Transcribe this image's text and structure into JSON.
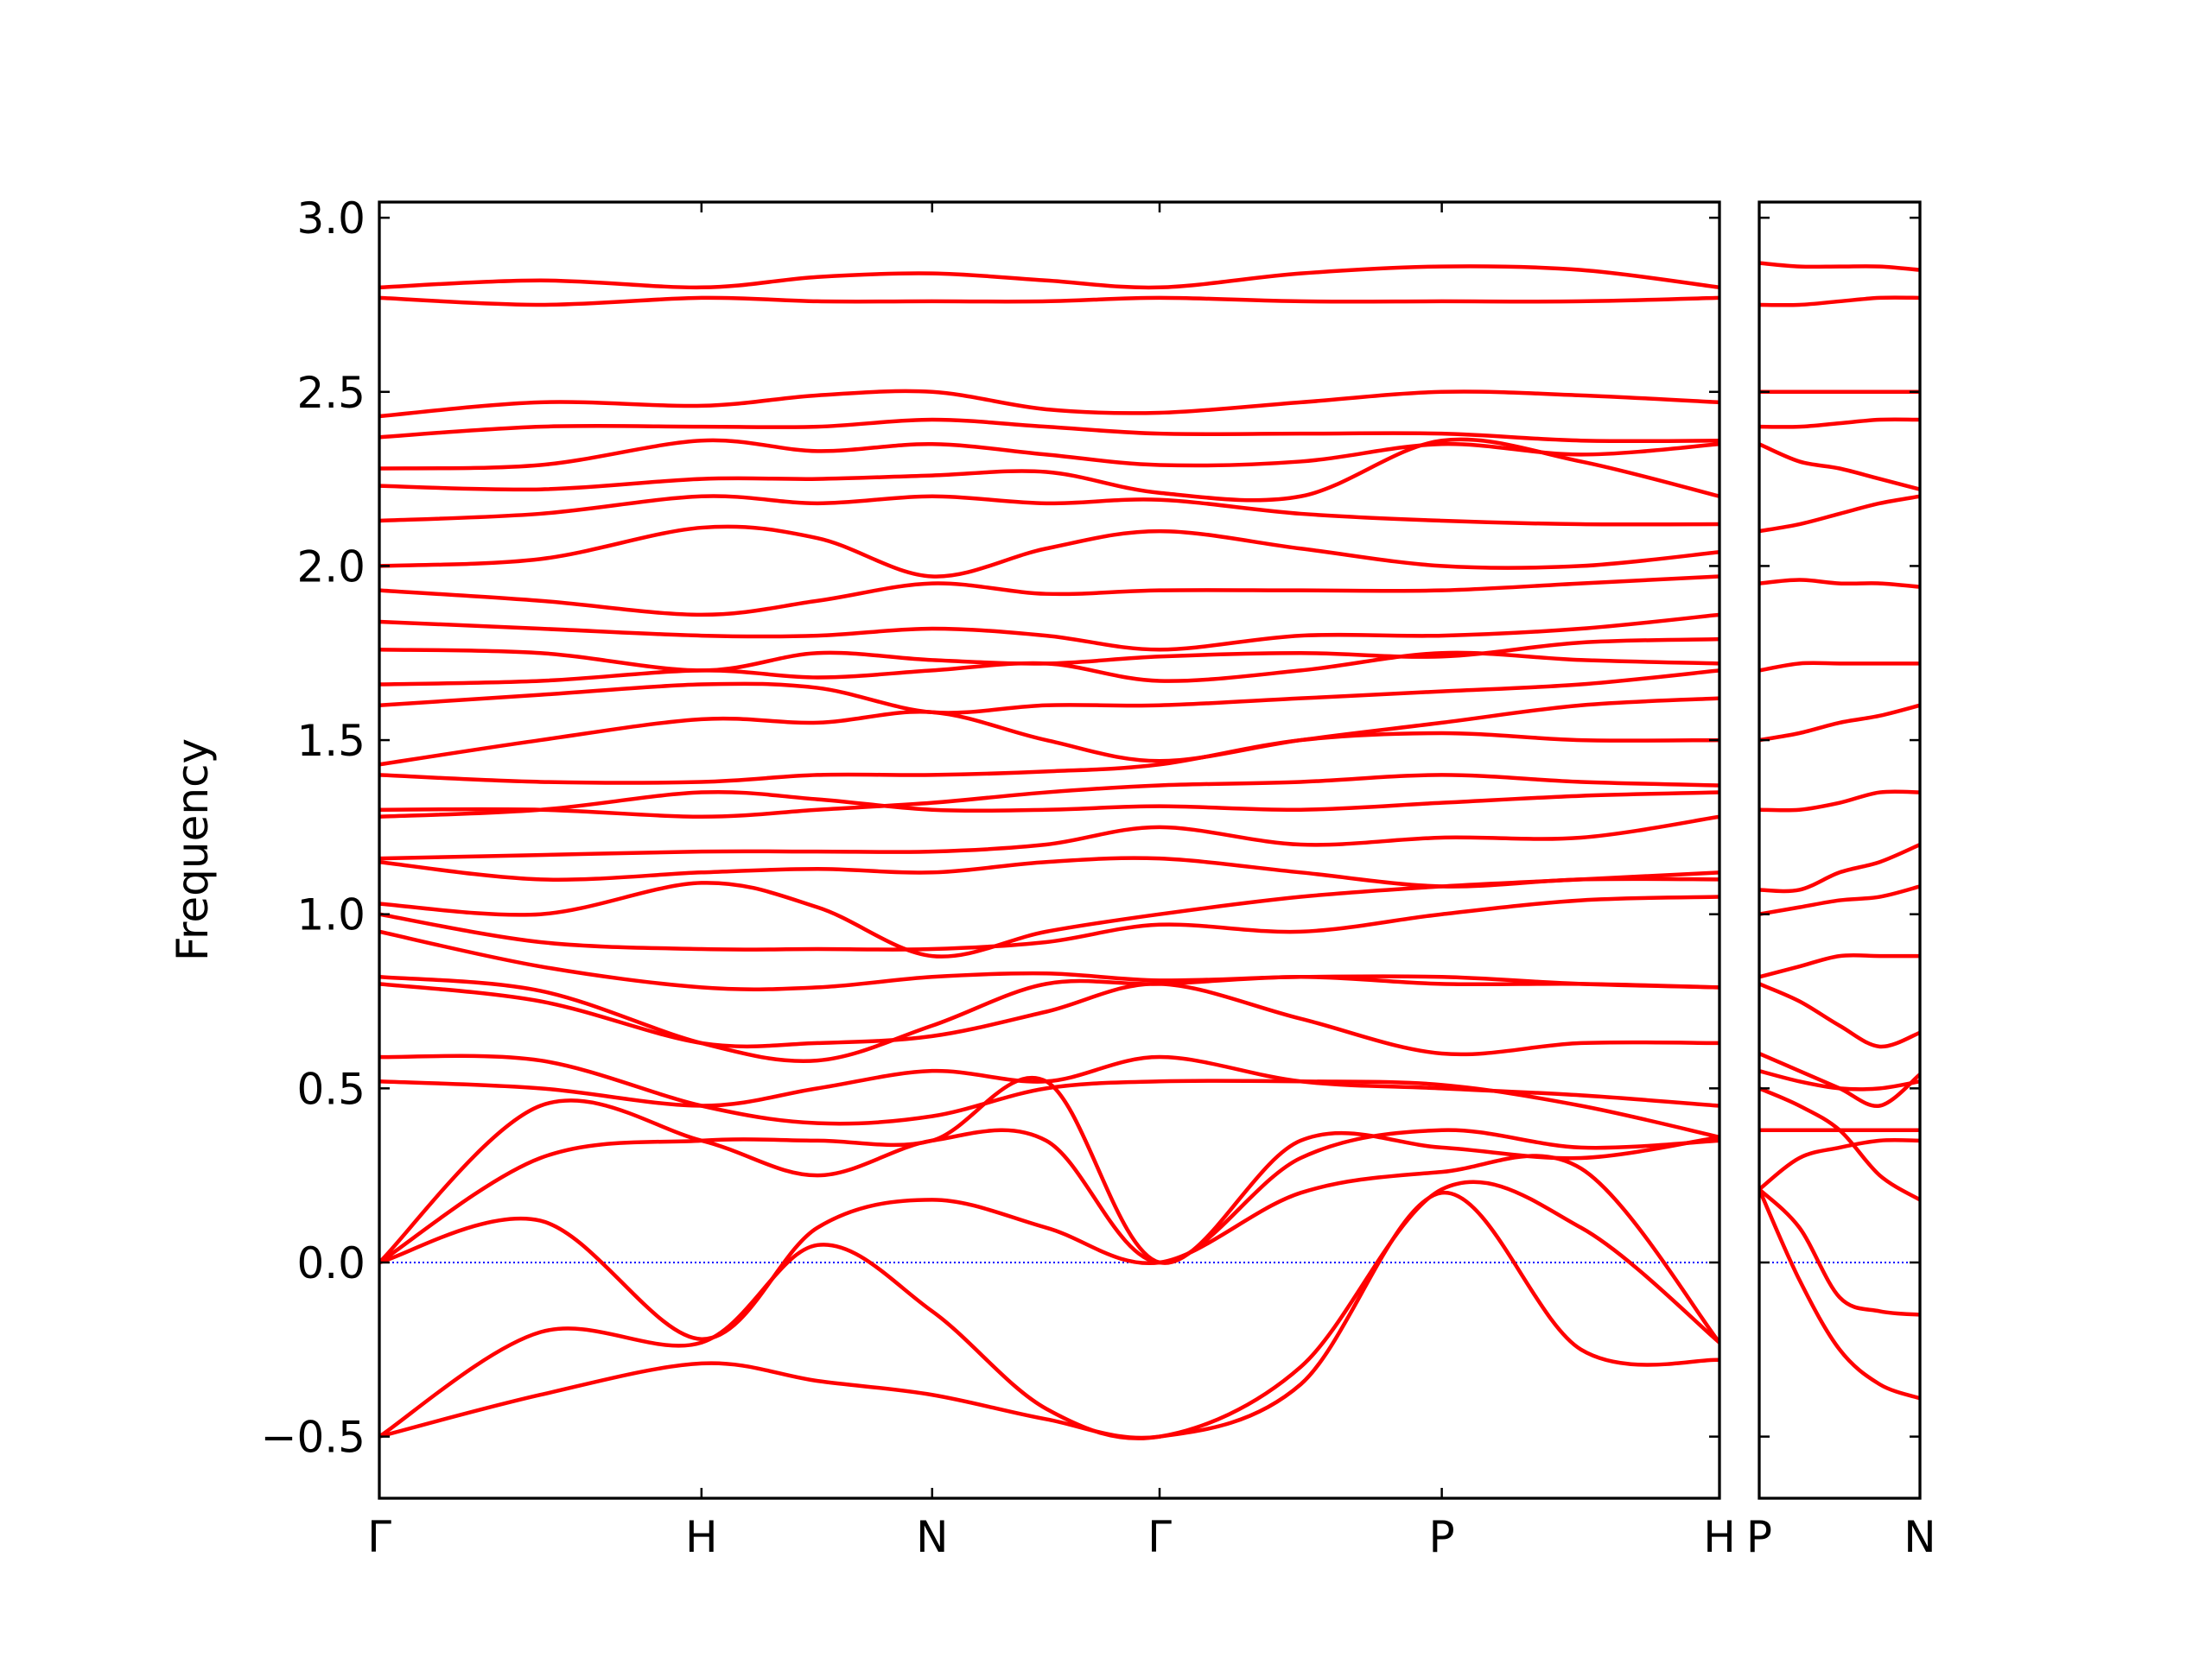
{
  "chart_data": [
    {
      "type": "line",
      "ylabel": "Frequency",
      "color": "#ff0000",
      "xlim": [
        0,
        4.16
      ],
      "ylim": [
        -0.677,
        3.045
      ],
      "xticks": [
        {
          "value": 0,
          "label": "Γ"
        },
        {
          "value": 1.0,
          "label": "H"
        },
        {
          "value": 1.716,
          "label": "N"
        },
        {
          "value": 2.422,
          "label": "Γ"
        },
        {
          "value": 3.298,
          "label": "P"
        },
        {
          "value": 4.16,
          "label": "H"
        }
      ],
      "yticks": [
        {
          "value": -0.5,
          "label": "−0.5"
        },
        {
          "value": 0,
          "label": "0.0"
        },
        0.5,
        {
          "value": 1,
          "label": "1.0"
        },
        1.5,
        {
          "value": 2,
          "label": "2.0"
        },
        2.5,
        {
          "value": 3,
          "label": "3.0"
        }
      ],
      "hline": {
        "value": 0,
        "color": "#0000ff",
        "style": "dotted"
      },
      "x": [
        0,
        0.5,
        1.0,
        1.36,
        1.716,
        2.07,
        2.422,
        2.86,
        3.298,
        3.73,
        4.16
      ],
      "series": [
        {
          "values": [
            -0.5,
            -0.38,
            -0.29,
            -0.34,
            -0.38,
            -0.45,
            -0.5,
            -0.35,
            0.2,
            -0.25,
            -0.28
          ]
        },
        {
          "values": [
            -0.5,
            -0.2,
            -0.23,
            0.05,
            -0.14,
            -0.42,
            -0.5,
            -0.3,
            0.21,
            0.1,
            -0.23
          ]
        },
        {
          "values": [
            0,
            0.12,
            -0.22,
            0.1,
            0.18,
            0.1,
            0,
            0.2,
            0.26,
            0.27,
            -0.23
          ]
        },
        {
          "values": [
            0,
            0.45,
            0.35,
            0.25,
            0.35,
            0.35,
            0,
            0.3,
            0.38,
            0.33,
            0.35
          ]
        },
        {
          "values": [
            0,
            0.3,
            0.35,
            0.35,
            0.35,
            0.52,
            0,
            0.35,
            0.33,
            0.3,
            0.36
          ]
        },
        {
          "values": [
            0.52,
            0.5,
            0.45,
            0.5,
            0.55,
            0.52,
            0.59,
            0.52,
            0.5,
            0.48,
            0.45
          ]
        },
        {
          "values": [
            0.59,
            0.58,
            0.45,
            0.4,
            0.42,
            0.5,
            0.52,
            0.52,
            0.51,
            0.45,
            0.36
          ]
        },
        {
          "values": [
            0.8,
            0.75,
            0.63,
            0.63,
            0.65,
            0.72,
            0.8,
            0.7,
            0.6,
            0.63,
            0.63
          ]
        },
        {
          "values": [
            0.82,
            0.78,
            0.63,
            0.58,
            0.68,
            0.8,
            0.8,
            0.82,
            0.8,
            0.8,
            0.79
          ]
        },
        {
          "values": [
            0.95,
            0.85,
            0.79,
            0.79,
            0.82,
            0.83,
            0.81,
            0.82,
            0.82,
            0.8,
            0.79
          ]
        },
        {
          "values": [
            1.0,
            0.92,
            0.9,
            0.9,
            0.9,
            0.92,
            0.97,
            0.95,
            1.0,
            1.04,
            1.05
          ]
        },
        {
          "values": [
            1.03,
            1.0,
            1.09,
            1.02,
            0.88,
            0.95,
            1.0,
            1.05,
            1.08,
            1.1,
            1.12
          ]
        },
        {
          "values": [
            1.15,
            1.1,
            1.12,
            1.13,
            1.12,
            1.15,
            1.16,
            1.12,
            1.08,
            1.1,
            1.1
          ]
        },
        {
          "values": [
            1.16,
            1.17,
            1.18,
            1.18,
            1.18,
            1.2,
            1.25,
            1.2,
            1.22,
            1.22,
            1.28
          ]
        },
        {
          "values": [
            1.28,
            1.3,
            1.35,
            1.33,
            1.3,
            1.3,
            1.31,
            1.3,
            1.32,
            1.34,
            1.35
          ]
        },
        {
          "values": [
            1.3,
            1.3,
            1.28,
            1.3,
            1.32,
            1.35,
            1.37,
            1.38,
            1.4,
            1.38,
            1.37
          ]
        },
        {
          "values": [
            1.4,
            1.38,
            1.38,
            1.4,
            1.4,
            1.41,
            1.43,
            1.5,
            1.52,
            1.5,
            1.5
          ]
        },
        {
          "values": [
            1.43,
            1.5,
            1.56,
            1.55,
            1.58,
            1.5,
            1.44,
            1.5,
            1.55,
            1.6,
            1.62
          ]
        },
        {
          "values": [
            1.6,
            1.63,
            1.66,
            1.65,
            1.58,
            1.6,
            1.6,
            1.62,
            1.64,
            1.66,
            1.7
          ]
        },
        {
          "values": [
            1.66,
            1.67,
            1.7,
            1.68,
            1.7,
            1.72,
            1.67,
            1.7,
            1.75,
            1.73,
            1.72
          ]
        },
        {
          "values": [
            1.76,
            1.75,
            1.7,
            1.75,
            1.73,
            1.72,
            1.74,
            1.75,
            1.74,
            1.78,
            1.79
          ]
        },
        {
          "values": [
            1.84,
            1.82,
            1.8,
            1.8,
            1.82,
            1.8,
            1.76,
            1.8,
            1.8,
            1.82,
            1.86
          ]
        },
        {
          "values": [
            1.93,
            1.9,
            1.86,
            1.9,
            1.95,
            1.92,
            1.93,
            1.93,
            1.93,
            1.95,
            1.97
          ]
        },
        {
          "values": [
            2.0,
            2.02,
            2.11,
            2.08,
            1.97,
            2.05,
            2.1,
            2.05,
            2.0,
            2.0,
            2.04
          ]
        },
        {
          "values": [
            2.13,
            2.15,
            2.2,
            2.18,
            2.2,
            2.18,
            2.19,
            2.15,
            2.13,
            2.12,
            2.12
          ]
        },
        {
          "values": [
            2.23,
            2.22,
            2.25,
            2.25,
            2.26,
            2.27,
            2.21,
            2.2,
            2.36,
            2.3,
            2.2
          ]
        },
        {
          "values": [
            2.28,
            2.29,
            2.36,
            2.33,
            2.35,
            2.32,
            2.29,
            2.3,
            2.35,
            2.32,
            2.35
          ]
        },
        {
          "values": [
            2.37,
            2.4,
            2.4,
            2.4,
            2.42,
            2.4,
            2.38,
            2.38,
            2.38,
            2.36,
            2.36
          ]
        },
        {
          "values": [
            2.43,
            2.47,
            2.46,
            2.49,
            2.5,
            2.45,
            2.44,
            2.47,
            2.5,
            2.49,
            2.47
          ]
        },
        {
          "values": [
            2.77,
            2.75,
            2.77,
            2.76,
            2.76,
            2.76,
            2.77,
            2.76,
            2.76,
            2.76,
            2.77
          ]
        },
        {
          "values": [
            2.8,
            2.82,
            2.8,
            2.83,
            2.84,
            2.82,
            2.8,
            2.84,
            2.86,
            2.85,
            2.8
          ]
        }
      ]
    },
    {
      "type": "line",
      "color": "#ff0000",
      "sharey": true,
      "xlim": [
        0,
        0.5
      ],
      "xticks": [
        {
          "value": 0,
          "label": "P"
        },
        {
          "value": 0.5,
          "label": "N"
        }
      ],
      "hline": {
        "value": 0,
        "color": "#0000ff",
        "style": "dotted"
      },
      "x": [
        0,
        0.125,
        0.25,
        0.375,
        0.5
      ],
      "series": [
        {
          "values": [
            0.21,
            -0.05,
            -0.25,
            -0.35,
            -0.39
          ]
        },
        {
          "values": [
            0.21,
            0.1,
            -0.1,
            -0.14,
            -0.15
          ]
        },
        {
          "values": [
            0.21,
            0.3,
            0.33,
            0.35,
            0.35
          ]
        },
        {
          "values": [
            0.38,
            0.38,
            0.38,
            0.38,
            0.38
          ]
        },
        {
          "values": [
            0.5,
            0.45,
            0.38,
            0.25,
            0.18
          ]
        },
        {
          "values": [
            0.55,
            0.52,
            0.5,
            0.5,
            0.52
          ]
        },
        {
          "values": [
            0.6,
            0.55,
            0.5,
            0.45,
            0.54
          ]
        },
        {
          "values": [
            0.8,
            0.75,
            0.68,
            0.62,
            0.66
          ]
        },
        {
          "values": [
            0.82,
            0.85,
            0.88,
            0.88,
            0.88
          ]
        },
        {
          "values": [
            1.0,
            1.02,
            1.04,
            1.05,
            1.08
          ]
        },
        {
          "values": [
            1.07,
            1.07,
            1.12,
            1.15,
            1.2
          ]
        },
        {
          "values": [
            1.3,
            1.3,
            1.32,
            1.35,
            1.35
          ]
        },
        {
          "values": [
            1.5,
            1.52,
            1.55,
            1.57,
            1.6
          ]
        },
        {
          "values": [
            1.7,
            1.72,
            1.72,
            1.72,
            1.72
          ]
        },
        {
          "values": [
            1.95,
            1.96,
            1.95,
            1.95,
            1.94
          ]
        },
        {
          "values": [
            2.1,
            2.12,
            2.15,
            2.18,
            2.2
          ]
        },
        {
          "values": [
            2.35,
            2.3,
            2.28,
            2.25,
            2.22
          ]
        },
        {
          "values": [
            2.4,
            2.4,
            2.41,
            2.42,
            2.42
          ]
        },
        {
          "values": [
            2.5,
            2.5,
            2.5,
            2.5,
            2.5
          ]
        },
        {
          "values": [
            2.75,
            2.75,
            2.76,
            2.77,
            2.77
          ]
        },
        {
          "values": [
            2.87,
            2.86,
            2.86,
            2.86,
            2.85
          ]
        }
      ]
    }
  ]
}
